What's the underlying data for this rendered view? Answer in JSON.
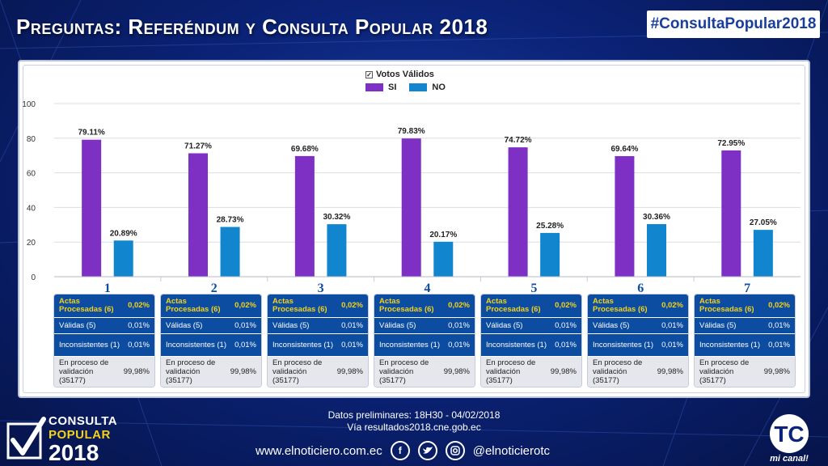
{
  "title": "Preguntas: Referéndum y Consulta Popular 2018",
  "hashtag": "#ConsultaPopular2018",
  "legend": {
    "title": "Votos Válidos",
    "items": [
      {
        "label": "SI",
        "color": "#7e2fc4"
      },
      {
        "label": "NO",
        "color": "#1186cf"
      }
    ]
  },
  "chart_data": {
    "type": "bar",
    "categories": [
      "1",
      "2",
      "3",
      "4",
      "5",
      "6",
      "7"
    ],
    "series": [
      {
        "name": "SI",
        "color": "#7e2fc4",
        "values": [
          79.11,
          71.27,
          69.68,
          79.83,
          74.72,
          69.64,
          72.95
        ],
        "labels": [
          "79.11%",
          "71.27%",
          "69.68%",
          "79.83%",
          "74.72%",
          "69.64%",
          "72.95%"
        ]
      },
      {
        "name": "NO",
        "color": "#1186cf",
        "values": [
          20.89,
          28.73,
          30.32,
          20.17,
          25.28,
          30.36,
          27.05
        ],
        "labels": [
          "20.89%",
          "28.73%",
          "30.32%",
          "20.17%",
          "25.28%",
          "30.36%",
          "27.05%"
        ]
      }
    ],
    "yticks": [
      "0",
      "20",
      "40",
      "60",
      "80",
      "100"
    ],
    "ylim": [
      0,
      100
    ],
    "grid": true,
    "legend_position": "top-center"
  },
  "tables": [
    {
      "head_label": "Actas Procesadas (6)",
      "head_value": "0,02%",
      "validas_label": "Válidas (5)",
      "validas_value": "0,01%",
      "incons_label": "Inconsistentes (1)",
      "incons_value": "0,01%",
      "proceso_label": "En proceso de validación (35177)",
      "proceso_value": "99,98%"
    },
    {
      "head_label": "Actas Procesadas (6)",
      "head_value": "0,02%",
      "validas_label": "Válidas (5)",
      "validas_value": "0,01%",
      "incons_label": "Inconsistentes (1)",
      "incons_value": "0,01%",
      "proceso_label": "En proceso de validación (35177)",
      "proceso_value": "99,98%"
    },
    {
      "head_label": "Actas Procesadas (6)",
      "head_value": "0,02%",
      "validas_label": "Válidas (5)",
      "validas_value": "0,01%",
      "incons_label": "Inconsistentes (1)",
      "incons_value": "0,01%",
      "proceso_label": "En proceso de validación (35177)",
      "proceso_value": "99,98%"
    },
    {
      "head_label": "Actas Procesadas (6)",
      "head_value": "0,02%",
      "validas_label": "Válidas (5)",
      "validas_value": "0,01%",
      "incons_label": "Inconsistentes (1)",
      "incons_value": "0,01%",
      "proceso_label": "En proceso de validación (35177)",
      "proceso_value": "99,98%"
    },
    {
      "head_label": "Actas Procesadas (6)",
      "head_value": "0,02%",
      "validas_label": "Válidas (5)",
      "validas_value": "0,01%",
      "incons_label": "Inconsistentes (1)",
      "incons_value": "0,01%",
      "proceso_label": "En proceso de validación (35177)",
      "proceso_value": "99,98%"
    },
    {
      "head_label": "Actas Procesadas (6)",
      "head_value": "0,02%",
      "validas_label": "Válidas (5)",
      "validas_value": "0,01%",
      "incons_label": "Inconsistentes (1)",
      "incons_value": "0,01%",
      "proceso_label": "En proceso de validación (35177)",
      "proceso_value": "99,98%"
    },
    {
      "head_label": "Actas Procesadas (6)",
      "head_value": "0,02%",
      "validas_label": "Válidas (5)",
      "validas_value": "0,01%",
      "incons_label": "Inconsistentes (1)",
      "incons_value": "0,01%",
      "proceso_label": "En proceso de validación (35177)",
      "proceso_value": "99,98%"
    }
  ],
  "footer": {
    "line1": "Datos preliminares: 18H30 - 04/02/2018",
    "line2": "Vía resultados2018.cne.gob.ec"
  },
  "brand": {
    "l1": "CONSULTA",
    "l2": "POPULAR",
    "l3": "2018"
  },
  "bottom": {
    "website": "www.elnoticiero.com.ec",
    "handle": "@elnoticierotc",
    "social_icons": [
      "facebook-icon",
      "twitter-icon",
      "instagram-icon"
    ]
  },
  "tc_logo": {
    "mark": "TC",
    "tagline": "mi canal!"
  }
}
